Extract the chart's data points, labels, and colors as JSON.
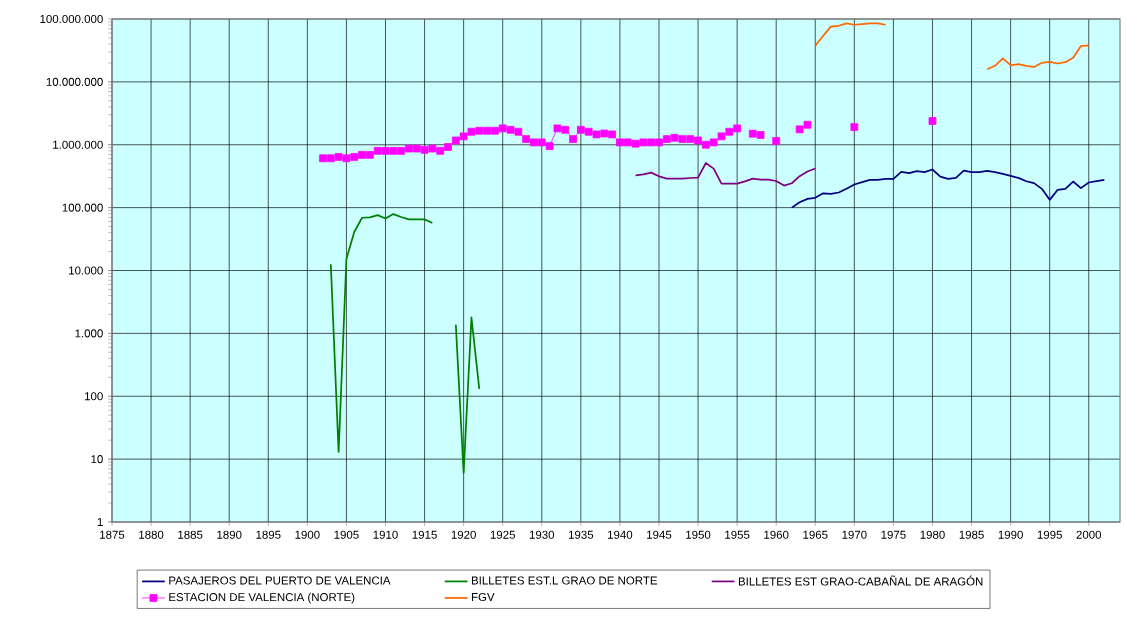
{
  "chart_data": {
    "type": "line",
    "log": true,
    "grid": true,
    "legend": "bottom",
    "xlim": [
      1875,
      2004
    ],
    "ylim": [
      1,
      100000000
    ],
    "xticks": [
      1875,
      1880,
      1885,
      1890,
      1895,
      1900,
      1905,
      1910,
      1915,
      1920,
      1925,
      1930,
      1935,
      1940,
      1945,
      1950,
      1955,
      1960,
      1965,
      1970,
      1975,
      1980,
      1985,
      1990,
      1995,
      2000
    ],
    "yticks": [
      1,
      10,
      100,
      {
        "value": 1000,
        "label": "1.000"
      },
      {
        "value": 10000,
        "label": "10.000"
      },
      {
        "value": 100000,
        "label": "100.000"
      },
      {
        "value": 1000000,
        "label": "1.000.000"
      },
      {
        "value": 10000000,
        "label": "10.000.000"
      },
      {
        "value": 100000000,
        "label": "100.000.000"
      }
    ],
    "series": [
      {
        "name": "PASAJEROS DEL PUERTO DE VALENCIA",
        "color": "#000080",
        "x": [
          1962,
          1963,
          1964,
          1965,
          1966,
          1967,
          1968,
          1969,
          1970,
          1971,
          1972,
          1973,
          1974,
          1975,
          1976,
          1977,
          1978,
          1979,
          1980,
          1981,
          1982,
          1983,
          1984,
          1985,
          1986,
          1987,
          1988,
          1989,
          1990,
          1991,
          1992,
          1993,
          1994,
          1995,
          1996,
          1997,
          1998,
          1999,
          2000,
          2001,
          2002
        ],
        "values": [
          100000,
          122000,
          138000,
          143000,
          169000,
          165000,
          174000,
          199000,
          233000,
          254000,
          276000,
          276000,
          287000,
          287000,
          371000,
          353000,
          380000,
          367000,
          404000,
          312000,
          287000,
          297000,
          389000,
          367000,
          367000,
          385000,
          367000,
          344000,
          320000,
          297000,
          263000,
          245000,
          199000,
          133000,
          191000,
          199000,
          260000,
          204000,
          251000,
          263000,
          276000
        ]
      },
      {
        "name": "BILLETES EST.L GRAO DE NORTE",
        "color": "#008000",
        "x": [
          1903,
          1904,
          1905,
          1906,
          1907,
          1908,
          1909,
          1910,
          1911,
          1912,
          1913,
          1914,
          1915,
          1916,
          1917,
          1918,
          1919,
          1920,
          1921,
          1922
        ],
        "values": [
          12600,
          13,
          15300,
          41000,
          69000,
          70000,
          76000,
          67000,
          79000,
          71000,
          65000,
          65000,
          65000,
          57000,
          null,
          null,
          1370,
          6,
          1790,
          131
        ]
      },
      {
        "name": "BILLETES EST GRAO-CABAÑAL DE  ARAGÓN",
        "color": "#800080",
        "x": [
          1942,
          1943,
          1944,
          1945,
          1946,
          1947,
          1948,
          1949,
          1950,
          1951,
          1952,
          1953,
          1954,
          1955,
          1956,
          1957,
          1958,
          1959,
          1960,
          1961,
          1962,
          1963,
          1964,
          1965
        ],
        "values": [
          327000,
          339000,
          360000,
          315000,
          289000,
          289000,
          289000,
          296000,
          300000,
          513000,
          417000,
          241000,
          241000,
          241000,
          262000,
          289000,
          279000,
          279000,
          265000,
          224000,
          244000,
          316000,
          375000,
          419000
        ]
      },
      {
        "name": "ESTACION DE VALENCIA (NORTE)",
        "color": "#ff00ff",
        "marker": "square",
        "x": [
          1902,
          1903,
          1904,
          1905,
          1906,
          1907,
          1908,
          1909,
          1910,
          1911,
          1912,
          1913,
          1914,
          1915,
          1916,
          1917,
          1918,
          1919,
          1920,
          1921,
          1922,
          1923,
          1924,
          1925,
          1926,
          1927,
          1928,
          1929,
          1930,
          1931,
          1932,
          1933,
          1934,
          1935,
          1936,
          1937,
          1938,
          1939,
          1940,
          1941,
          1942,
          1943,
          1944,
          1945,
          1946,
          1947,
          1948,
          1949,
          1950,
          1951,
          1952,
          1953,
          1954,
          1955,
          1956,
          1957,
          1958,
          1959,
          1960,
          1961,
          1962,
          1963,
          1964,
          1965,
          1966,
          1967,
          1968,
          1969,
          1970,
          1971,
          1972,
          1973,
          1974,
          1975,
          1976,
          1977,
          1978,
          1979,
          1980
        ],
        "values": [
          610000,
          610000,
          640000,
          610000,
          640000,
          690000,
          690000,
          800000,
          800000,
          800000,
          800000,
          870000,
          870000,
          830000,
          870000,
          800000,
          920000,
          1170000,
          1360000,
          1610000,
          1670000,
          1670000,
          1670000,
          1820000,
          1730000,
          1610000,
          1230000,
          1090000,
          1090000,
          950000,
          1820000,
          1730000,
          1230000,
          1730000,
          1610000,
          1460000,
          1510000,
          1460000,
          1090000,
          1090000,
          1040000,
          1090000,
          1090000,
          1090000,
          1230000,
          1290000,
          1230000,
          1230000,
          1170000,
          1000000,
          1090000,
          1360000,
          1610000,
          1820000,
          null,
          1500000,
          1430000,
          null,
          1150000,
          null,
          null,
          1760000,
          2080000,
          null,
          null,
          null,
          null,
          null,
          1910000,
          null,
          null,
          null,
          null,
          null,
          null,
          null,
          null,
          null,
          2390000
        ]
      },
      {
        "name": "FGV",
        "color": "#ff6600",
        "x": [
          1965,
          1966,
          1967,
          1968,
          1969,
          1970,
          1971,
          1972,
          1973,
          1974,
          1975,
          1976,
          1977,
          1978,
          1979,
          1980,
          1981,
          1982,
          1983,
          1984,
          1985,
          1986,
          1987,
          1988,
          1989,
          1990,
          1991,
          1992,
          1993,
          1994,
          1995,
          1996,
          1997,
          1998,
          1999,
          2000
        ],
        "values": [
          37500000,
          53600000,
          75500000,
          78000000,
          85000000,
          81000000,
          83000000,
          85000000,
          85000000,
          81000000,
          null,
          null,
          null,
          null,
          null,
          null,
          null,
          null,
          null,
          null,
          null,
          null,
          15900000,
          18000000,
          23600000,
          18500000,
          19100000,
          18000000,
          17300000,
          20100000,
          20800000,
          19600000,
          20600000,
          24200000,
          37100000,
          38000000
        ]
      }
    ]
  }
}
